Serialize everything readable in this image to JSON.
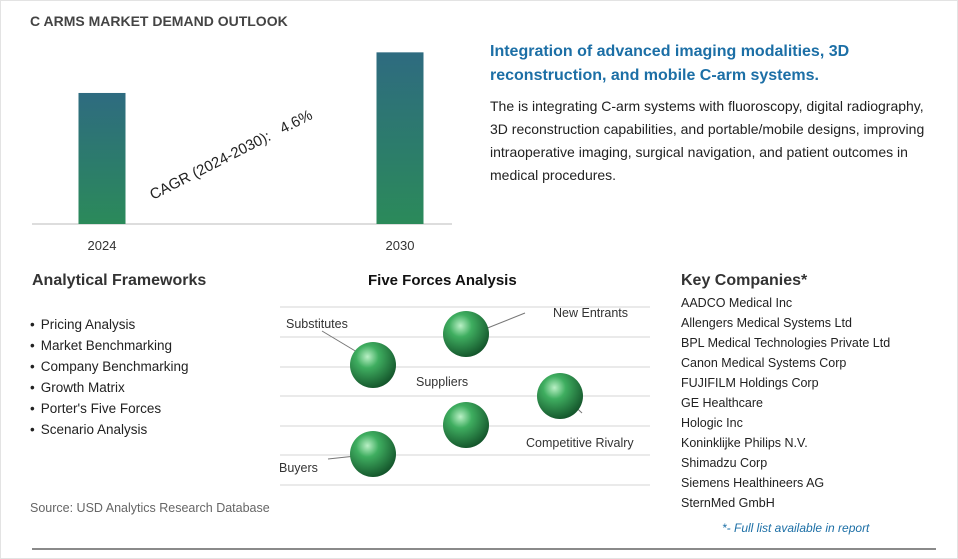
{
  "page": {
    "title": "C ARMS MARKET DEMAND OUTLOOK"
  },
  "chart_data": {
    "type": "bar",
    "categories": [
      "2024",
      "2030"
    ],
    "values": [
      1.0,
      1.31
    ],
    "value_unit": "relative",
    "ylim": [
      0,
      1.45
    ],
    "annotation": "CAGR (2024-2030):   4.6%",
    "colors": {
      "bar_top": "#2e6b80",
      "bar_bottom": "#2b8a5a",
      "axis": "#bbbbbb"
    }
  },
  "highlight": {
    "headline": "Integration of advanced imaging modalities, 3D reconstruction, and mobile C-arm systems.",
    "body": "The is integrating C-arm systems with fluoroscopy, digital radiography, 3D reconstruction capabilities, and portable/mobile designs, improving intraoperative imaging, surgical navigation, and patient outcomes in medical procedures."
  },
  "frameworks": {
    "title": "Analytical Frameworks",
    "items": [
      "Pricing Analysis",
      "Market Benchmarking",
      "Company Benchmarking",
      "Growth Matrix",
      "Porter's Five Forces",
      "Scenario Analysis"
    ]
  },
  "five_forces": {
    "title": "Five Forces Analysis",
    "labels": {
      "substitutes": "Substitutes",
      "new_entrants": "New Entrants",
      "suppliers": "Suppliers",
      "competitive_rivalry": "Competitive Rivalry",
      "buyers": "Buyers"
    },
    "sphere_color": "#2e9a52"
  },
  "companies": {
    "title": "Key Companies*",
    "items": [
      "AADCO Medical Inc",
      "Allengers Medical Systems Ltd",
      "BPL Medical Technologies Private Ltd",
      "Canon Medical Systems Corp",
      "FUJIFILM Holdings Corp",
      "GE Healthcare",
      "Hologic Inc",
      "Koninklijke Philips N.V.",
      "Shimadzu Corp",
      "Siemens Healthineers AG",
      "SternMed GmbH"
    ]
  },
  "footer": {
    "source": "Source: USD Analytics Research Database",
    "note": "*- Full list available in report"
  }
}
